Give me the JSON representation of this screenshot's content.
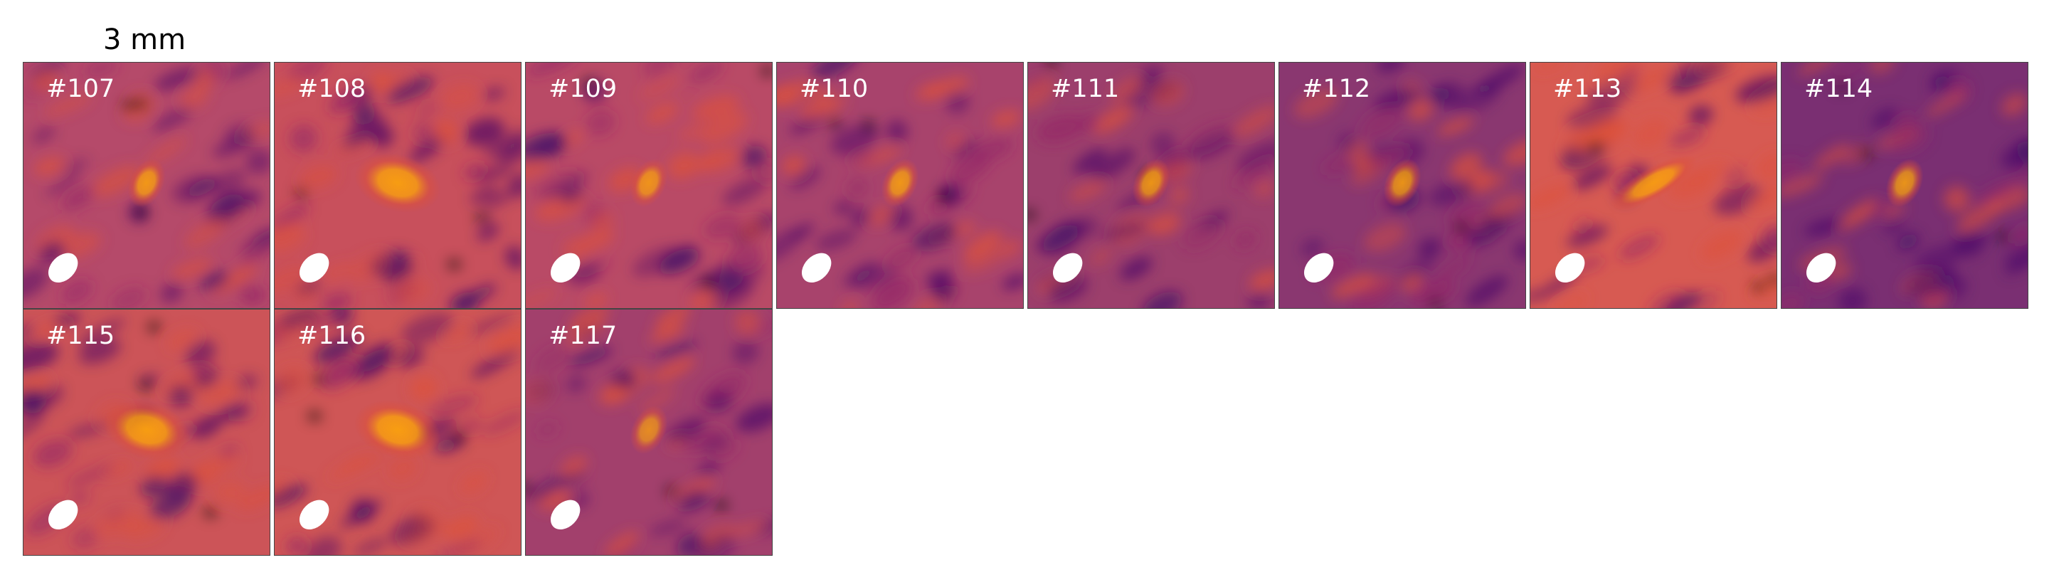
{
  "figure": {
    "title": "3 mm",
    "colormap": [
      "#000004",
      "#420a68",
      "#932667",
      "#dd513a",
      "#fca50a",
      "#fcffa4"
    ],
    "beam_color": "#ffffff",
    "panel_border_color": "#444444",
    "label_color": "#ffffff"
  },
  "panels": [
    {
      "label": "#107",
      "bg": "#b54a6a",
      "source": {
        "size": "compact",
        "brightness": 0.85
      }
    },
    {
      "label": "#108",
      "bg": "#c8505c",
      "source": {
        "size": "extended",
        "brightness": 0.9
      }
    },
    {
      "label": "#109",
      "bg": "#b94a66",
      "source": {
        "size": "compact",
        "brightness": 0.8
      }
    },
    {
      "label": "#110",
      "bg": "#a8436c",
      "source": {
        "size": "compact",
        "brightness": 0.85
      }
    },
    {
      "label": "#111",
      "bg": "#9c3f6c",
      "source": {
        "size": "compact",
        "brightness": 0.85
      }
    },
    {
      "label": "#112",
      "bg": "#8a3770",
      "source": {
        "size": "compact",
        "brightness": 0.85
      }
    },
    {
      "label": "#113",
      "bg": "#d75a52",
      "source": {
        "size": "elongated",
        "brightness": 0.85
      }
    },
    {
      "label": "#114",
      "bg": "#7a2f72",
      "source": {
        "size": "compact",
        "brightness": 0.85
      }
    },
    {
      "label": "#115",
      "bg": "#cc5458",
      "source": {
        "size": "extended",
        "brightness": 0.9
      }
    },
    {
      "label": "#116",
      "bg": "#cf5656",
      "source": {
        "size": "extended",
        "brightness": 0.9
      }
    },
    {
      "label": "#117",
      "bg": "#a2406c",
      "source": {
        "size": "compact",
        "brightness": 0.75
      }
    }
  ]
}
